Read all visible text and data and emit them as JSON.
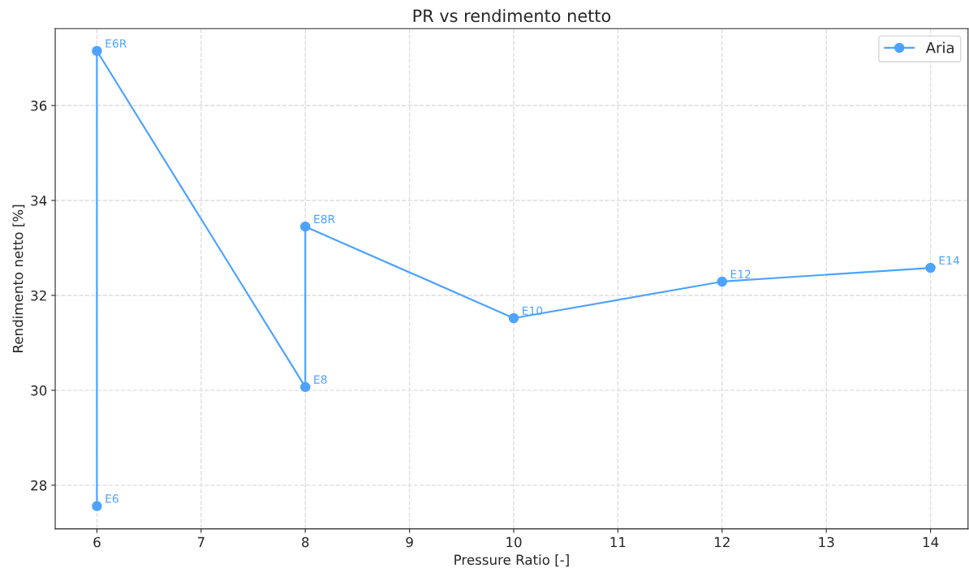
{
  "chart_data": {
    "type": "line",
    "title": "PR vs rendimento netto",
    "xlabel": "Pressure Ratio [-]",
    "ylabel": "Rendimento netto [%]",
    "series": [
      {
        "name": "Aria",
        "color": "#4da3ff",
        "x": [
          6,
          6,
          8,
          8,
          10,
          12,
          14
        ],
        "values": [
          27.56,
          37.15,
          30.07,
          33.45,
          31.52,
          32.29,
          32.58
        ]
      }
    ],
    "annotations": [
      {
        "text": "E6",
        "x": 6,
        "y": 27.56
      },
      {
        "text": "E6R",
        "x": 6,
        "y": 37.15
      },
      {
        "text": "E8",
        "x": 8,
        "y": 30.07
      },
      {
        "text": "E8R",
        "x": 8,
        "y": 33.45
      },
      {
        "text": "E10",
        "x": 10,
        "y": 31.52
      },
      {
        "text": "E12",
        "x": 12,
        "y": 32.29
      },
      {
        "text": "E14",
        "x": 14,
        "y": 32.58
      }
    ],
    "xlim": [
      5.6,
      14.36
    ],
    "ylim": [
      27.08,
      37.62
    ],
    "xticks": [
      6,
      7,
      8,
      9,
      10,
      11,
      12,
      13,
      14
    ],
    "yticks": [
      28,
      30,
      32,
      34,
      36
    ],
    "grid": true,
    "legend": "top right",
    "marker": "circle",
    "line_style": "solid"
  }
}
